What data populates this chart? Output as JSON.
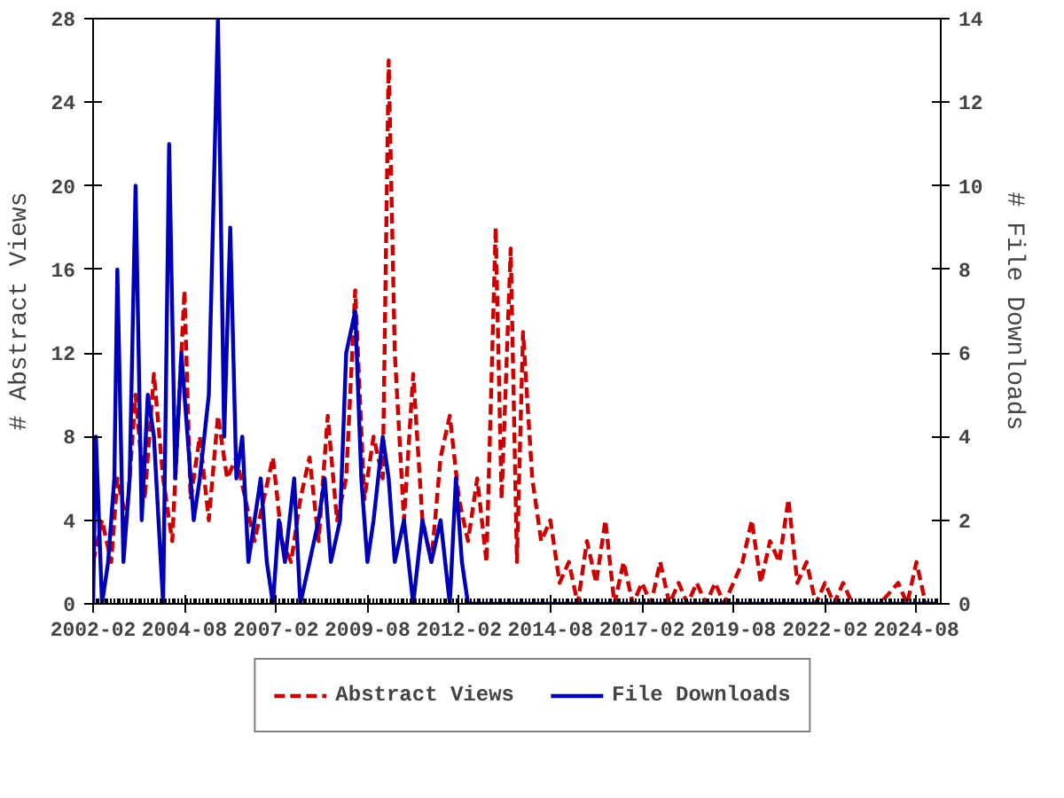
{
  "chart_data": {
    "type": "line",
    "xlabel": null,
    "ylabel": "# Abstract Views",
    "y2label": "# File Downloads",
    "xlim": [
      "2002-02",
      "2025-04"
    ],
    "xticks": [
      "2002-02",
      "2004-08",
      "2007-02",
      "2009-08",
      "2012-02",
      "2014-08",
      "2017-02",
      "2019-08",
      "2022-02",
      "2024-08"
    ],
    "ylim": [
      0,
      28
    ],
    "yticks": [
      0,
      4,
      8,
      12,
      16,
      20,
      24,
      28
    ],
    "y2lim": [
      0,
      14
    ],
    "y2ticks": [
      0,
      2,
      4,
      6,
      8,
      10,
      12,
      14
    ],
    "grid": false,
    "legend": "bottom",
    "series": [
      {
        "name": "Abstract Views",
        "color": "#cc0000",
        "line_style": "dashed",
        "x": [
          "2002-02",
          "2002-05",
          "2002-08",
          "2002-10",
          "2003-01",
          "2003-04",
          "2003-07",
          "2003-10",
          "2004-01",
          "2004-04",
          "2004-08",
          "2004-10",
          "2005-01",
          "2005-04",
          "2005-07",
          "2005-10",
          "2006-01",
          "2006-04",
          "2006-07",
          "2006-10",
          "2007-01",
          "2007-04",
          "2007-07",
          "2007-10",
          "2008-01",
          "2008-04",
          "2008-07",
          "2008-10",
          "2009-01",
          "2009-04",
          "2009-07",
          "2009-10",
          "2010-01",
          "2010-03",
          "2010-05",
          "2010-08",
          "2010-11",
          "2011-02",
          "2011-05",
          "2011-08",
          "2011-11",
          "2012-02",
          "2012-05",
          "2012-08",
          "2012-11",
          "2013-02",
          "2013-04",
          "2013-07",
          "2013-09",
          "2013-11",
          "2014-02",
          "2014-05",
          "2014-08",
          "2014-11",
          "2015-02",
          "2015-05",
          "2015-08",
          "2015-11",
          "2016-02",
          "2016-05",
          "2016-08",
          "2016-11",
          "2017-02",
          "2017-05",
          "2017-08",
          "2017-11",
          "2018-02",
          "2018-05",
          "2018-08",
          "2018-11",
          "2019-02",
          "2019-05",
          "2019-08",
          "2019-11",
          "2020-02",
          "2020-05",
          "2020-08",
          "2020-11",
          "2021-02",
          "2021-05",
          "2021-08",
          "2021-11",
          "2022-02",
          "2022-05",
          "2022-08",
          "2022-11",
          "2023-02",
          "2023-08",
          "2024-02",
          "2024-05",
          "2024-08",
          "2024-11",
          "2025-03"
        ],
        "values": [
          2,
          4,
          2,
          6,
          4,
          10,
          5,
          11,
          6,
          3,
          15,
          5,
          8,
          4,
          9,
          6,
          7,
          5,
          3,
          5,
          7,
          3,
          2,
          5,
          7,
          3,
          9,
          4,
          6,
          15,
          5,
          8,
          6,
          26,
          12,
          4,
          11,
          4,
          2,
          7,
          9,
          5,
          3,
          6,
          2,
          18,
          5,
          17,
          2,
          13,
          6,
          3,
          4,
          1,
          2,
          0,
          3,
          1,
          4,
          0,
          2,
          0,
          1,
          0,
          2,
          0,
          1,
          0,
          1,
          0,
          1,
          0,
          1,
          2,
          4,
          1,
          3,
          2,
          5,
          1,
          2,
          0,
          1,
          0,
          1,
          0,
          0,
          0,
          1,
          0,
          2,
          0,
          0
        ]
      },
      {
        "name": "File Downloads",
        "color": "#0000bb",
        "line_style": "solid",
        "axis": "y2",
        "x": [
          "2002-02",
          "2002-03",
          "2002-05",
          "2002-07",
          "2002-09",
          "2002-10",
          "2002-12",
          "2003-02",
          "2003-04",
          "2003-06",
          "2003-08",
          "2003-10",
          "2004-01",
          "2004-03",
          "2004-05",
          "2004-07",
          "2004-09",
          "2004-11",
          "2005-01",
          "2005-04",
          "2005-07",
          "2005-09",
          "2005-11",
          "2006-01",
          "2006-03",
          "2006-05",
          "2006-07",
          "2006-09",
          "2006-11",
          "2007-01",
          "2007-03",
          "2007-05",
          "2007-08",
          "2007-10",
          "2008-01",
          "2008-04",
          "2008-06",
          "2008-08",
          "2008-11",
          "2009-01",
          "2009-04",
          "2009-06",
          "2009-08",
          "2009-10",
          "2010-01",
          "2010-03",
          "2010-05",
          "2010-08",
          "2010-11",
          "2011-02",
          "2011-05",
          "2011-08",
          "2011-11",
          "2012-01",
          "2012-03",
          "2012-05",
          "2025-03"
        ],
        "values": [
          0,
          4,
          0,
          1,
          3,
          8,
          1,
          3,
          10,
          2,
          5,
          4,
          0,
          11,
          3,
          6,
          4,
          2,
          3,
          5,
          14,
          4,
          9,
          3,
          4,
          1,
          2,
          3,
          1,
          0,
          2,
          1,
          3,
          0,
          1,
          2,
          3,
          1,
          2,
          6,
          7,
          3,
          1,
          2,
          4,
          3,
          1,
          2,
          0,
          2,
          1,
          2,
          0,
          3,
          1,
          0,
          0
        ]
      }
    ]
  }
}
